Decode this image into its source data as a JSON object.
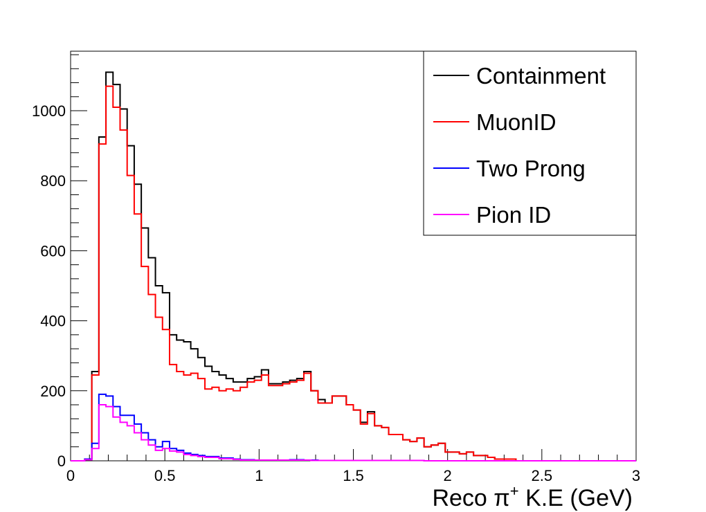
{
  "chart_data": {
    "type": "line",
    "title": "",
    "xlabel": "Reco π⁺ K.E (GeV)",
    "xlabel_parts": {
      "pre": "Reco ",
      "sym": "π",
      "sup": "+",
      "post": " K.E (GeV)"
    },
    "ylabel": "",
    "xlim": [
      0,
      3
    ],
    "ylim": [
      0,
      1170
    ],
    "grid": false,
    "legend_position": "top-right",
    "x_ticks": [
      0,
      0.5,
      1,
      1.5,
      2,
      2.5,
      3
    ],
    "x_tick_labels": [
      "0",
      "0.5",
      "1",
      "1.5",
      "2",
      "2.5",
      "3"
    ],
    "y_ticks": [
      0,
      200,
      400,
      600,
      800,
      1000
    ],
    "y_tick_labels": [
      "0",
      "200",
      "400",
      "600",
      "800",
      "1000"
    ],
    "bin_width": 0.0375,
    "series": [
      {
        "name": "Containment",
        "color": "#000000",
        "values": [
          0,
          0,
          5,
          255,
          925,
          1110,
          1075,
          1005,
          900,
          790,
          665,
          580,
          500,
          480,
          360,
          345,
          340,
          320,
          295,
          270,
          255,
          245,
          235,
          225,
          225,
          235,
          240,
          260,
          220,
          220,
          225,
          230,
          235,
          255,
          200,
          175,
          165,
          185,
          185,
          160,
          145,
          110,
          140,
          100,
          95,
          75,
          75,
          60,
          55,
          65,
          40,
          45,
          50,
          25,
          25,
          20,
          25,
          15,
          15,
          10,
          5,
          5,
          5,
          0,
          0,
          0,
          0,
          0,
          0,
          0,
          0,
          0,
          0,
          0,
          0,
          0,
          0,
          0,
          0,
          0
        ]
      },
      {
        "name": "MuonID",
        "color": "#ff0000",
        "values": [
          0,
          0,
          5,
          245,
          905,
          1070,
          1010,
          945,
          815,
          705,
          555,
          475,
          410,
          375,
          275,
          255,
          245,
          250,
          235,
          205,
          210,
          200,
          205,
          200,
          210,
          225,
          230,
          245,
          215,
          215,
          220,
          225,
          230,
          250,
          200,
          165,
          165,
          185,
          185,
          160,
          145,
          105,
          135,
          100,
          95,
          75,
          75,
          60,
          55,
          65,
          40,
          45,
          50,
          25,
          25,
          20,
          25,
          15,
          15,
          10,
          5,
          5,
          5,
          0,
          0,
          0,
          0,
          0,
          0,
          0,
          0,
          0,
          0,
          0,
          0,
          0,
          0,
          0,
          0,
          0
        ]
      },
      {
        "name": "Two Prong",
        "color": "#0000ff",
        "values": [
          0,
          0,
          5,
          50,
          190,
          185,
          155,
          130,
          130,
          105,
          80,
          60,
          40,
          55,
          35,
          30,
          22,
          18,
          15,
          12,
          12,
          8,
          8,
          5,
          3,
          3,
          2,
          2,
          2,
          2,
          2,
          3,
          3,
          2,
          2,
          1,
          1,
          1,
          1,
          1,
          1,
          1,
          1,
          1,
          1,
          1,
          1,
          1,
          1,
          1,
          0,
          0,
          0,
          0,
          0,
          0,
          0,
          0,
          0,
          0,
          0,
          0,
          0,
          0,
          0,
          0,
          0,
          0,
          0,
          0,
          0,
          0,
          0,
          0,
          0,
          0,
          0,
          0,
          0,
          0
        ]
      },
      {
        "name": "Pion ID",
        "color": "#ff00ff",
        "values": [
          0,
          0,
          3,
          35,
          160,
          155,
          125,
          110,
          100,
          80,
          60,
          45,
          30,
          35,
          28,
          25,
          18,
          15,
          12,
          10,
          10,
          6,
          6,
          4,
          2,
          2,
          2,
          2,
          2,
          2,
          2,
          2,
          2,
          2,
          1,
          1,
          1,
          1,
          1,
          1,
          1,
          1,
          1,
          1,
          1,
          1,
          1,
          1,
          1,
          1,
          0,
          0,
          0,
          0,
          0,
          0,
          0,
          0,
          0,
          0,
          0,
          0,
          0,
          0,
          0,
          0,
          0,
          0,
          0,
          0,
          0,
          0,
          0,
          0,
          0,
          0,
          0,
          0,
          0,
          0
        ]
      }
    ]
  }
}
